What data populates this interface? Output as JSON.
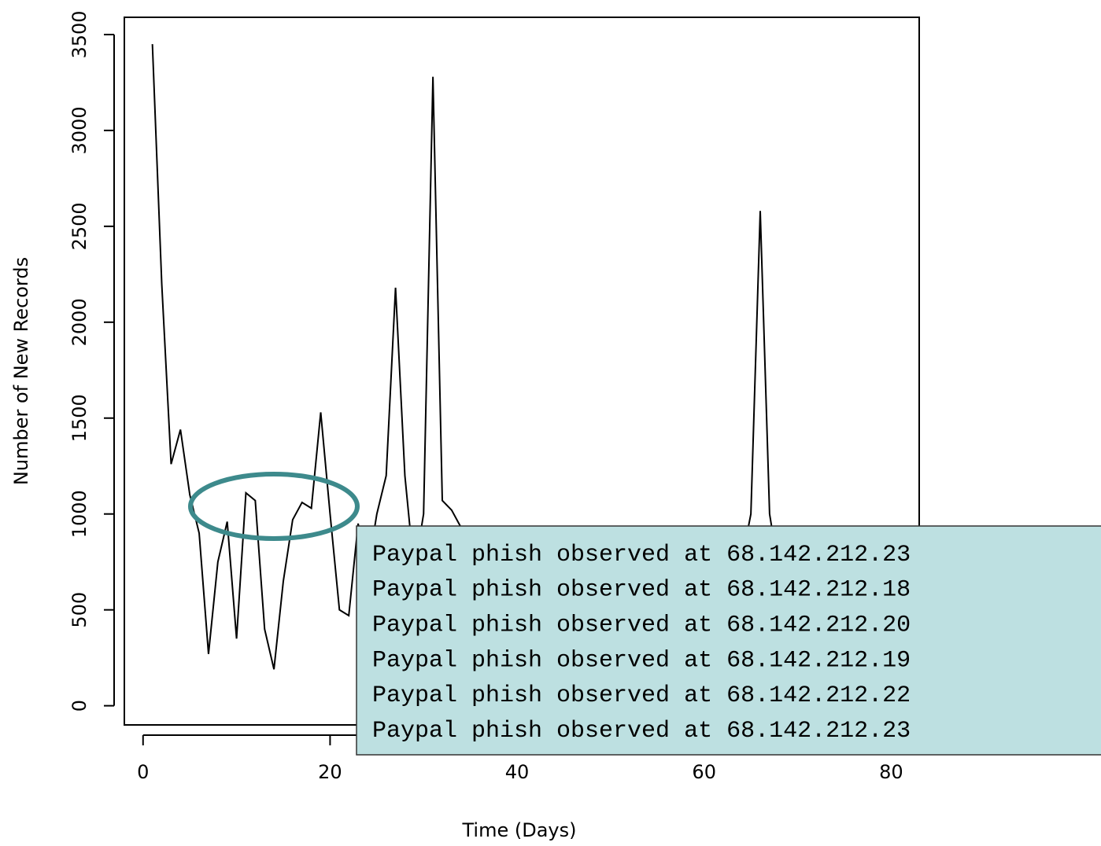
{
  "chart_data": {
    "type": "line",
    "xlabel": "Time (Days)",
    "ylabel": "Number of New Records",
    "x": [
      1,
      2,
      3,
      4,
      5,
      6,
      7,
      8,
      9,
      10,
      11,
      12,
      13,
      14,
      15,
      16,
      17,
      18,
      19,
      20,
      21,
      22,
      23,
      24,
      25,
      26,
      27,
      28,
      29,
      30,
      31,
      32,
      33,
      34,
      35,
      36,
      37,
      38,
      39,
      40,
      41,
      42,
      43,
      44,
      45,
      46,
      47,
      48,
      49,
      50,
      51,
      52,
      53,
      54,
      55,
      56,
      57,
      58,
      59,
      60,
      61,
      62,
      63,
      64,
      65,
      66,
      67,
      68,
      69,
      70,
      71,
      72,
      73,
      74,
      75,
      76,
      77,
      78,
      79,
      80,
      81,
      82
    ],
    "values": [
      3450,
      2200,
      1260,
      1440,
      1100,
      900,
      270,
      750,
      960,
      350,
      1110,
      1070,
      400,
      190,
      650,
      970,
      1060,
      1030,
      1530,
      1000,
      500,
      470,
      950,
      700,
      1000,
      1200,
      2180,
      1200,
      700,
      1000,
      3280,
      1070,
      1020,
      930,
      700,
      650,
      800,
      600,
      750,
      700,
      650,
      800,
      700,
      600,
      750,
      650,
      700,
      800,
      650,
      600,
      700,
      750,
      650,
      700,
      600,
      650,
      750,
      700,
      650,
      700,
      800,
      700,
      650,
      750,
      1000,
      2580,
      1000,
      700,
      650,
      750,
      700,
      600,
      700,
      650,
      750,
      700,
      650,
      700,
      600,
      700,
      650,
      700
    ],
    "color": "#000000",
    "xlim": [
      -2,
      83
    ],
    "ylim": [
      -100,
      3590
    ],
    "xticks": [
      0,
      20,
      40,
      60,
      80
    ],
    "yticks": [
      0,
      500,
      1000,
      1500,
      2000,
      2500,
      3000,
      3500
    ],
    "annotations": [
      "Paypal phish observed at 68.142.212.23",
      "Paypal phish observed at 68.142.212.18",
      "Paypal phish observed at 68.142.212.20",
      "Paypal phish observed at 68.142.212.19",
      "Paypal phish observed at 68.142.212.22",
      "Paypal phish observed at 68.142.212.23"
    ]
  }
}
